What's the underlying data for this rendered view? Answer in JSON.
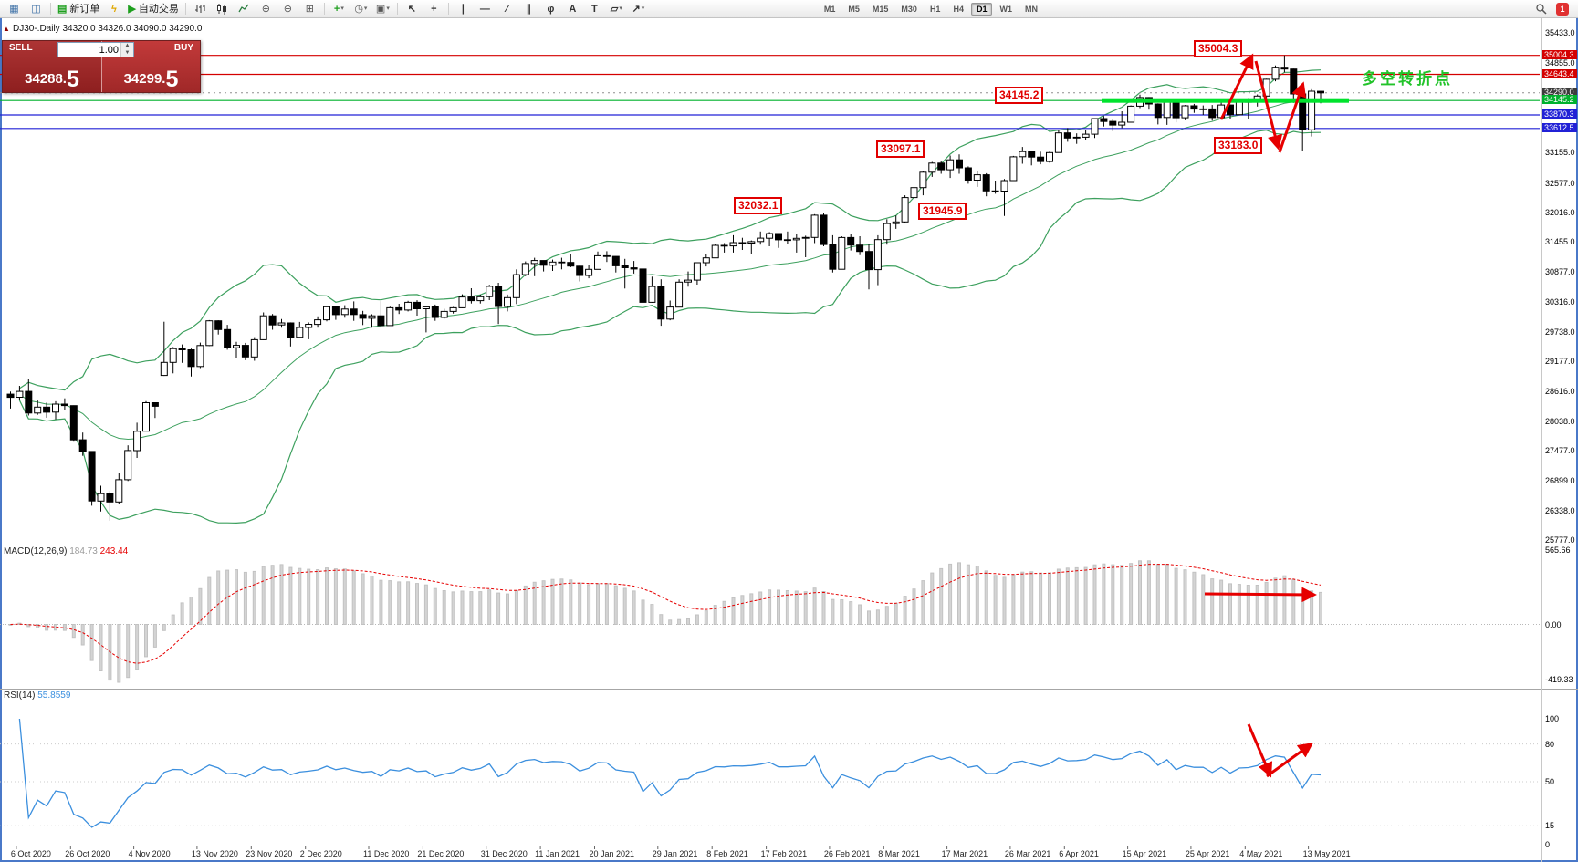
{
  "toolbar": {
    "new_order_label": "新订单",
    "autotrade_label": "自动交易",
    "timeframes": [
      "M1",
      "M5",
      "M15",
      "M30",
      "H1",
      "H4",
      "D1",
      "W1",
      "MN"
    ],
    "active_timeframe": "D1",
    "badge_count": "1"
  },
  "chart_header": {
    "symbol_line": "DJ30-.Daily  34320.0 34326.0 34090.0 34290.0"
  },
  "trade_panel": {
    "sell_label": "SELL",
    "buy_label": "BUY",
    "volume": "1.00",
    "sell_price_main": "34288.",
    "sell_price_big": "5",
    "buy_price_main": "34299.",
    "buy_price_big": "5"
  },
  "annotations": {
    "callouts": [
      {
        "id": "c35004",
        "text": "35004.3"
      },
      {
        "id": "c34145",
        "text": "34145.2"
      },
      {
        "id": "c33097",
        "text": "33097.1"
      },
      {
        "id": "c32032",
        "text": "32032.1"
      },
      {
        "id": "c31945",
        "text": "31945.9"
      },
      {
        "id": "c33183",
        "text": "33183.0"
      }
    ],
    "turning_point_text": "多空转折点"
  },
  "price_scale": {
    "ticks": [
      "35433.0",
      "34855.0",
      "33155.0",
      "32577.0",
      "32016.0",
      "31455.0",
      "30877.0",
      "30316.0",
      "29738.0",
      "29177.0",
      "28616.0",
      "28038.0",
      "27477.0",
      "26899.0",
      "26338.0",
      "25777.0"
    ],
    "levels": [
      {
        "price": 35004.3,
        "label": "35004.3",
        "color": "#d40000",
        "line": "solid"
      },
      {
        "price": 34643.4,
        "label": "34643.4",
        "color": "#d40000",
        "line": "solid"
      },
      {
        "price": 34290.0,
        "label": "34290.0",
        "color": "#3c3c3c",
        "line": "dashed"
      },
      {
        "price": 34145.2,
        "label": "34145.2",
        "color": "#00b22d",
        "line": "solid",
        "thick": true
      },
      {
        "price": 33870.3,
        "label": "33870.3",
        "color": "#2121d6",
        "line": "solid"
      },
      {
        "price": 33612.5,
        "label": "33612.5",
        "color": "#2121d6",
        "line": "solid"
      }
    ]
  },
  "macd_panel": {
    "label": "MACD(12,26,9)",
    "value_main": "184.73",
    "value_signal": "243.44",
    "scale": [
      "565.66",
      "0.00",
      "-419.33"
    ]
  },
  "rsi_panel": {
    "label": "RSI(14)",
    "value": "55.8559",
    "scale": [
      "100",
      "80",
      "50",
      "15",
      "0"
    ]
  },
  "date_axis": [
    {
      "text": "6 Oct 2020",
      "idx": 1
    },
    {
      "text": "26 Oct 2020",
      "idx": 7
    },
    {
      "text": "4 Nov 2020",
      "idx": 14
    },
    {
      "text": "13 Nov 2020",
      "idx": 21
    },
    {
      "text": "23 Nov 2020",
      "idx": 27
    },
    {
      "text": "2 Dec 2020",
      "idx": 33
    },
    {
      "text": "11 Dec 2020",
      "idx": 40
    },
    {
      "text": "21 Dec 2020",
      "idx": 46
    },
    {
      "text": "31 Dec 2020",
      "idx": 53
    },
    {
      "text": "11 Jan 2021",
      "idx": 59
    },
    {
      "text": "20 Jan 2021",
      "idx": 65
    },
    {
      "text": "29 Jan 2021",
      "idx": 72
    },
    {
      "text": "8 Feb 2021",
      "idx": 78
    },
    {
      "text": "17 Feb 2021",
      "idx": 84
    },
    {
      "text": "26 Feb 2021",
      "idx": 91
    },
    {
      "text": "8 Mar 2021",
      "idx": 97
    },
    {
      "text": "17 Mar 2021",
      "idx": 104
    },
    {
      "text": "26 Mar 2021",
      "idx": 111
    },
    {
      "text": "6 Apr 2021",
      "idx": 117
    },
    {
      "text": "15 Apr 2021",
      "idx": 124
    },
    {
      "text": "25 Apr 2021",
      "idx": 131
    },
    {
      "text": "4 May 2021",
      "idx": 137
    },
    {
      "text": "13 May 2021",
      "idx": 144
    }
  ],
  "chart_data": {
    "type": "candlestick",
    "symbol": "DJ30-",
    "period": "Daily",
    "title": "DJ30- Daily chart with Bollinger Bands, MACD(12,26,9), RSI(14)",
    "ylim": [
      25777,
      35433
    ],
    "current_price": 34290.0,
    "resistance_levels": [
      35004.3,
      34643.4
    ],
    "support_levels": [
      34145.2,
      33870.3,
      33612.5
    ],
    "swing_annotations": [
      35004.3,
      34145.2,
      33097.1,
      32032.1,
      31945.9,
      33183.0
    ],
    "indicators": {
      "bollinger": {
        "period": 20,
        "deviation": 2
      },
      "macd": {
        "fast": 12,
        "slow": 26,
        "signal": 9,
        "values": [
          184.73,
          243.44
        ],
        "scale_max": 565.66,
        "scale_min": -419.33
      },
      "rsi": {
        "period": 14,
        "value": 55.8559,
        "levels": [
          80,
          50,
          15
        ]
      }
    },
    "colors": {
      "bull": "#ffffff",
      "bear": "#000000",
      "bollinger": "#3da05e",
      "rsi": "#3b8fde",
      "macd_signal": "#e60000",
      "annotation_red": "#e10000",
      "turning_point_green": "#22c32a",
      "level_green_bright": "#00e32d"
    },
    "ohlc": [
      [
        28554,
        28602,
        28280,
        28494
      ],
      [
        28494,
        28712,
        28440,
        28606
      ],
      [
        28606,
        28838,
        28148,
        28195
      ],
      [
        28195,
        28452,
        28161,
        28308
      ],
      [
        28308,
        28393,
        28106,
        28211
      ],
      [
        28211,
        28418,
        28075,
        28364
      ],
      [
        28364,
        28474,
        28249,
        28336
      ],
      [
        28336,
        28341,
        27650,
        27685
      ],
      [
        27685,
        27823,
        27380,
        27463
      ],
      [
        27463,
        27466,
        26430,
        26520
      ],
      [
        26520,
        26810,
        26320,
        26660
      ],
      [
        26660,
        26710,
        26143,
        26502
      ],
      [
        26502,
        27062,
        26470,
        26925
      ],
      [
        26925,
        27580,
        26900,
        27480
      ],
      [
        27480,
        28010,
        27340,
        27848
      ],
      [
        27848,
        28420,
        27845,
        28390
      ],
      [
        28390,
        28400,
        28100,
        28323
      ],
      [
        28910,
        29933,
        28902,
        29158
      ],
      [
        29158,
        29450,
        28950,
        29421
      ],
      [
        29421,
        29500,
        29150,
        29398
      ],
      [
        29398,
        29420,
        28890,
        29080
      ],
      [
        29080,
        29535,
        29050,
        29480
      ],
      [
        29480,
        29964,
        29470,
        29950
      ],
      [
        29950,
        29960,
        29690,
        29783
      ],
      [
        29783,
        29873,
        29400,
        29438
      ],
      [
        29438,
        29550,
        29250,
        29483
      ],
      [
        29483,
        29530,
        29200,
        29263
      ],
      [
        29263,
        29640,
        29190,
        29591
      ],
      [
        29591,
        30110,
        29585,
        30046
      ],
      [
        30046,
        30080,
        29780,
        29872
      ],
      [
        29872,
        29985,
        29820,
        29910
      ],
      [
        29910,
        29920,
        29463,
        29639
      ],
      [
        29639,
        29930,
        29630,
        29824
      ],
      [
        29824,
        29920,
        29600,
        29884
      ],
      [
        29884,
        30035,
        29820,
        29970
      ],
      [
        29970,
        30240,
        29940,
        30218
      ],
      [
        30218,
        30233,
        29970,
        30069
      ],
      [
        30069,
        30247,
        30010,
        30174
      ],
      [
        30174,
        30320,
        29950,
        30069
      ],
      [
        30069,
        30140,
        29870,
        29999
      ],
      [
        29999,
        30075,
        29820,
        30046
      ],
      [
        30046,
        30325,
        29820,
        29861
      ],
      [
        29861,
        30220,
        29858,
        30199
      ],
      [
        30199,
        30275,
        30080,
        30155
      ],
      [
        30155,
        30330,
        30130,
        30303
      ],
      [
        30303,
        30343,
        30050,
        30179
      ],
      [
        30179,
        30230,
        29730,
        30216
      ],
      [
        30216,
        30260,
        29950,
        30015
      ],
      [
        30015,
        30180,
        29990,
        30129
      ],
      [
        30129,
        30215,
        30090,
        30199
      ],
      [
        30199,
        30455,
        30195,
        30404
      ],
      [
        30404,
        30570,
        30280,
        30335
      ],
      [
        30335,
        30450,
        30280,
        30409
      ],
      [
        30409,
        30637,
        30344,
        30606
      ],
      [
        30606,
        30674,
        29890,
        30223
      ],
      [
        30223,
        30450,
        30130,
        30392
      ],
      [
        30392,
        30930,
        30270,
        30829
      ],
      [
        30829,
        31080,
        30800,
        31041
      ],
      [
        31041,
        31150,
        30800,
        31098
      ],
      [
        31098,
        31100,
        30890,
        31008
      ],
      [
        31008,
        31115,
        30900,
        31069
      ],
      [
        31069,
        31150,
        30930,
        31061
      ],
      [
        31061,
        31220,
        30970,
        30991
      ],
      [
        30991,
        31000,
        30700,
        30814
      ],
      [
        30814,
        31020,
        30760,
        30930
      ],
      [
        30930,
        31270,
        30928,
        31188
      ],
      [
        31188,
        31275,
        31070,
        31176
      ],
      [
        31176,
        31180,
        30870,
        30997
      ],
      [
        30997,
        31130,
        30565,
        30960
      ],
      [
        30960,
        31090,
        30850,
        30937
      ],
      [
        30937,
        30940,
        30115,
        30303
      ],
      [
        30303,
        30790,
        30295,
        30603
      ],
      [
        30603,
        30740,
        29857,
        29983
      ],
      [
        29983,
        30336,
        29960,
        30212
      ],
      [
        30212,
        30740,
        30208,
        30687
      ],
      [
        30687,
        30890,
        30600,
        30724
      ],
      [
        30724,
        31060,
        30640,
        31056
      ],
      [
        31056,
        31220,
        30985,
        31148
      ],
      [
        31148,
        31420,
        31145,
        31386
      ],
      [
        31386,
        31430,
        31250,
        31376
      ],
      [
        31376,
        31580,
        31250,
        31438
      ],
      [
        31438,
        31530,
        31300,
        31430
      ],
      [
        31430,
        31480,
        31230,
        31458
      ],
      [
        31458,
        31650,
        31400,
        31523
      ],
      [
        31523,
        31640,
        31370,
        31613
      ],
      [
        31613,
        31620,
        31340,
        31493
      ],
      [
        31493,
        31650,
        31410,
        31494
      ],
      [
        31494,
        31600,
        31250,
        31521
      ],
      [
        31521,
        31570,
        31160,
        31537
      ],
      [
        31537,
        31980,
        31430,
        31961
      ],
      [
        31961,
        32010,
        31370,
        31402
      ],
      [
        31402,
        31580,
        30870,
        30932
      ],
      [
        30932,
        31560,
        30928,
        31536
      ],
      [
        31536,
        31600,
        31290,
        31392
      ],
      [
        31392,
        31560,
        31200,
        31270
      ],
      [
        31270,
        31420,
        30550,
        30924
      ],
      [
        30924,
        31580,
        30630,
        31496
      ],
      [
        31496,
        31885,
        31400,
        31802
      ],
      [
        31802,
        31955,
        31700,
        31833
      ],
      [
        31833,
        32340,
        31820,
        32297
      ],
      [
        32297,
        32540,
        32200,
        32486
      ],
      [
        32486,
        32800,
        32340,
        32779
      ],
      [
        32779,
        32975,
        32690,
        32953
      ],
      [
        32953,
        33000,
        32750,
        32826
      ],
      [
        32826,
        33097,
        32670,
        33015
      ],
      [
        33015,
        33120,
        32750,
        32862
      ],
      [
        32862,
        32890,
        32560,
        32628
      ],
      [
        32628,
        32800,
        32500,
        32731
      ],
      [
        32731,
        32760,
        32320,
        32423
      ],
      [
        32423,
        32620,
        32370,
        32420
      ],
      [
        32420,
        32650,
        31946,
        32619
      ],
      [
        32619,
        33090,
        32615,
        33073
      ],
      [
        33073,
        33260,
        32940,
        33171
      ],
      [
        33171,
        33180,
        32910,
        33067
      ],
      [
        33067,
        33170,
        32930,
        32982
      ],
      [
        32982,
        33170,
        32960,
        33153
      ],
      [
        33153,
        33590,
        33150,
        33527
      ],
      [
        33527,
        33620,
        33360,
        33430
      ],
      [
        33430,
        33520,
        33320,
        33446
      ],
      [
        33446,
        33590,
        33400,
        33504
      ],
      [
        33504,
        33810,
        33430,
        33801
      ],
      [
        33801,
        33850,
        33650,
        33746
      ],
      [
        33746,
        33800,
        33560,
        33677
      ],
      [
        33677,
        33940,
        33620,
        33731
      ],
      [
        33731,
        34050,
        33728,
        34036
      ],
      [
        34036,
        34256,
        34000,
        34201
      ],
      [
        34201,
        34210,
        33970,
        34078
      ],
      [
        34078,
        34090,
        33690,
        33821
      ],
      [
        33821,
        34140,
        33680,
        34137
      ],
      [
        34137,
        34150,
        33730,
        33816
      ],
      [
        33816,
        34060,
        33770,
        34043
      ],
      [
        34043,
        34080,
        33910,
        33981
      ],
      [
        33981,
        34050,
        33870,
        33985
      ],
      [
        33985,
        34060,
        33760,
        33820
      ],
      [
        33820,
        34150,
        33780,
        34060
      ],
      [
        34060,
        34070,
        33785,
        33875
      ],
      [
        33875,
        34180,
        33870,
        34113
      ],
      [
        34113,
        34190,
        33800,
        34133
      ],
      [
        34133,
        34260,
        34030,
        34230
      ],
      [
        34230,
        34560,
        34130,
        34549
      ],
      [
        34549,
        34811,
        34510,
        34778
      ],
      [
        34778,
        35004,
        34680,
        34743
      ],
      [
        34743,
        34750,
        34100,
        34269
      ],
      [
        34269,
        34290,
        33183,
        33587
      ],
      [
        33587,
        34360,
        33460,
        34321
      ],
      [
        34320,
        34326,
        34090,
        34290
      ]
    ]
  }
}
